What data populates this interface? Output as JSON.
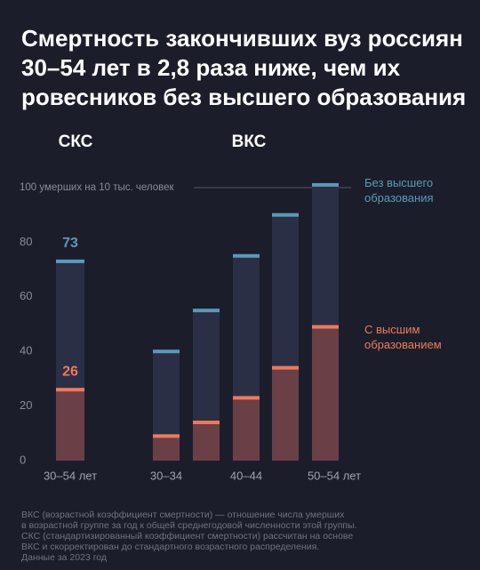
{
  "title": [
    "Смертность закончивших вуз россиян",
    "30–54 лет в 2,8 раза ниже, чем их",
    "ровесников без высшего образования"
  ],
  "chart_data": {
    "type": "bar",
    "ylim": [
      0,
      100
    ],
    "yticks": [
      0,
      20,
      40,
      60,
      80,
      {
        "value": 100,
        "label": "100 умерших на 10 тыс. человек"
      }
    ],
    "series": [
      {
        "name": "Без высшего образования",
        "color": "#5a9ab8"
      },
      {
        "name": "С высшим образованием",
        "color": "#ef7a5a"
      }
    ],
    "panels": [
      {
        "title": "СКС",
        "categories": [
          "30–54 лет"
        ],
        "values": [
          [
            73
          ],
          [
            26
          ]
        ],
        "data_labels": true
      },
      {
        "title": "ВКС",
        "categories": [
          "30–34",
          null,
          "40–44",
          null,
          "50–54 лет"
        ],
        "values": [
          [
            40,
            55,
            75,
            90,
            101
          ],
          [
            9,
            14,
            23,
            34,
            49
          ]
        ],
        "data_labels": false
      }
    ]
  },
  "footnote": [
    "ВКС (возрастной коэффициент смертности) — отношение числа умерших",
    "в возрастной группе за год к общей среднегодовой численности этой группы.",
    "СКС (стандартизированный коэффициент смертности) рассчитан на основе",
    "ВКС и скорректирован до стандартного возрастного распределения.",
    "Данные за 2023 год"
  ]
}
